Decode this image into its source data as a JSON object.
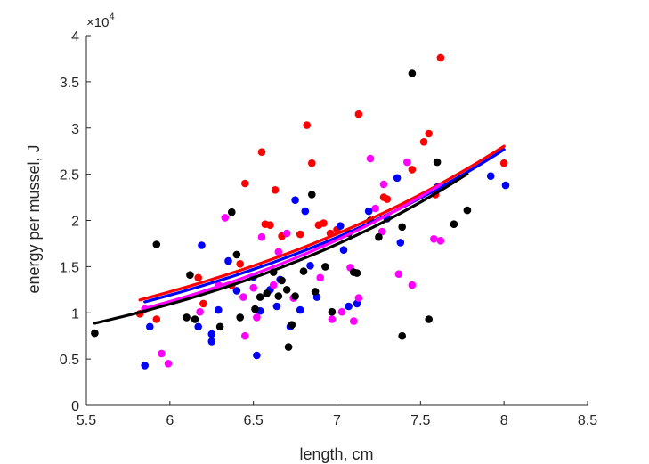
{
  "chart_data": {
    "type": "scatter",
    "xlabel": "length, cm",
    "ylabel": "energy per mussel, J",
    "y_exponent_label": "×10",
    "y_exponent": "4",
    "xlim": [
      5.5,
      8.5
    ],
    "ylim": [
      0,
      40000
    ],
    "xticks": [
      5.5,
      6,
      6.5,
      7,
      7.5,
      8,
      8.5
    ],
    "xtick_labels": [
      "5.5",
      "6",
      "6.5",
      "7",
      "7.5",
      "8",
      "8.5"
    ],
    "yticks": [
      0,
      5000,
      10000,
      15000,
      20000,
      25000,
      30000,
      35000,
      40000
    ],
    "ytick_labels": [
      "0",
      "0.5",
      "1",
      "1.5",
      "2",
      "2.5",
      "3",
      "3.5",
      "4"
    ],
    "grid": false,
    "series": [
      {
        "color": "#ff0000",
        "points": [
          [
            5.82,
            9900
          ],
          [
            5.92,
            9300
          ],
          [
            6.17,
            13800
          ],
          [
            6.2,
            11000
          ],
          [
            6.37,
            13000
          ],
          [
            6.42,
            15300
          ],
          [
            6.45,
            24000
          ],
          [
            6.55,
            27400
          ],
          [
            6.57,
            19600
          ],
          [
            6.6,
            19500
          ],
          [
            6.63,
            23300
          ],
          [
            6.67,
            18300
          ],
          [
            6.78,
            18500
          ],
          [
            6.82,
            30300
          ],
          [
            6.85,
            26200
          ],
          [
            6.89,
            19500
          ],
          [
            6.92,
            19700
          ],
          [
            6.96,
            18600
          ],
          [
            7.0,
            19000
          ],
          [
            7.13,
            31500
          ],
          [
            7.28,
            22500
          ],
          [
            7.3,
            22300
          ],
          [
            7.45,
            25500
          ],
          [
            7.52,
            28500
          ],
          [
            7.55,
            29400
          ],
          [
            7.59,
            22800
          ],
          [
            7.62,
            37600
          ],
          [
            8.0,
            26200
          ]
        ]
      },
      {
        "color": "#0000ff",
        "points": [
          [
            5.85,
            4300
          ],
          [
            5.88,
            8500
          ],
          [
            6.17,
            8500
          ],
          [
            6.19,
            17300
          ],
          [
            6.25,
            6900
          ],
          [
            6.25,
            7700
          ],
          [
            6.29,
            10300
          ],
          [
            6.35,
            15600
          ],
          [
            6.4,
            12400
          ],
          [
            6.5,
            13900
          ],
          [
            6.52,
            5400
          ],
          [
            6.54,
            10200
          ],
          [
            6.6,
            12500
          ],
          [
            6.64,
            10700
          ],
          [
            6.66,
            13600
          ],
          [
            6.72,
            8500
          ],
          [
            6.75,
            22200
          ],
          [
            6.78,
            10300
          ],
          [
            6.81,
            21000
          ],
          [
            6.84,
            15100
          ],
          [
            6.88,
            11700
          ],
          [
            7.02,
            19400
          ],
          [
            7.04,
            16800
          ],
          [
            7.07,
            10700
          ],
          [
            7.12,
            11000
          ],
          [
            7.19,
            21000
          ],
          [
            7.3,
            20200
          ],
          [
            7.36,
            24600
          ],
          [
            7.38,
            17600
          ],
          [
            7.6,
            23600
          ],
          [
            7.92,
            24800
          ],
          [
            8.01,
            23800
          ]
        ]
      },
      {
        "color": "#ff00ff",
        "points": [
          [
            5.85,
            10400
          ],
          [
            5.95,
            5600
          ],
          [
            5.99,
            4500
          ],
          [
            6.18,
            10100
          ],
          [
            6.29,
            13000
          ],
          [
            6.33,
            20300
          ],
          [
            6.44,
            11700
          ],
          [
            6.45,
            7500
          ],
          [
            6.5,
            12700
          ],
          [
            6.52,
            9500
          ],
          [
            6.55,
            18200
          ],
          [
            6.62,
            13000
          ],
          [
            6.65,
            16600
          ],
          [
            6.7,
            18600
          ],
          [
            6.74,
            11600
          ],
          [
            6.9,
            13800
          ],
          [
            6.97,
            9300
          ],
          [
            7.03,
            10100
          ],
          [
            7.08,
            14900
          ],
          [
            7.1,
            9100
          ],
          [
            7.13,
            11600
          ],
          [
            7.2,
            26700
          ],
          [
            7.23,
            21300
          ],
          [
            7.27,
            18800
          ],
          [
            7.28,
            23900
          ],
          [
            7.37,
            14200
          ],
          [
            7.42,
            26300
          ],
          [
            7.45,
            13000
          ],
          [
            7.58,
            18000
          ],
          [
            7.62,
            17800
          ]
        ]
      },
      {
        "color": "#000000",
        "points": [
          [
            5.55,
            7800
          ],
          [
            5.92,
            17400
          ],
          [
            6.1,
            9500
          ],
          [
            6.12,
            14100
          ],
          [
            6.15,
            9300
          ],
          [
            6.3,
            8500
          ],
          [
            6.37,
            20900
          ],
          [
            6.4,
            16300
          ],
          [
            6.42,
            9500
          ],
          [
            6.51,
            10400
          ],
          [
            6.54,
            11700
          ],
          [
            6.58,
            12100
          ],
          [
            6.62,
            14400
          ],
          [
            6.65,
            11800
          ],
          [
            6.67,
            13500
          ],
          [
            6.7,
            12500
          ],
          [
            6.71,
            6300
          ],
          [
            6.73,
            8700
          ],
          [
            6.75,
            11800
          ],
          [
            6.8,
            14500
          ],
          [
            6.85,
            22800
          ],
          [
            6.87,
            12300
          ],
          [
            6.93,
            15000
          ],
          [
            6.97,
            10100
          ],
          [
            7.07,
            18600
          ],
          [
            7.1,
            14400
          ],
          [
            7.12,
            14300
          ],
          [
            7.2,
            20000
          ],
          [
            7.25,
            18200
          ],
          [
            7.39,
            19300
          ],
          [
            7.39,
            7500
          ],
          [
            7.45,
            35900
          ],
          [
            7.55,
            9300
          ],
          [
            7.6,
            26300
          ],
          [
            7.7,
            19600
          ],
          [
            7.78,
            21100
          ]
        ]
      }
    ],
    "fit_lines": [
      {
        "color": "#ff0000",
        "x": [
          5.82,
          8.0
        ],
        "a": 1030,
        "b": 0.413
      },
      {
        "color": "#0000ff",
        "x": [
          5.85,
          8.0
        ],
        "a": 950,
        "b": 0.4215
      },
      {
        "color": "#ff00ff",
        "x": [
          5.85,
          7.62
        ],
        "a": 690,
        "b": 0.465
      },
      {
        "color": "#000000",
        "x": [
          5.55,
          7.78
        ],
        "a": 672,
        "b": 0.465
      }
    ]
  }
}
